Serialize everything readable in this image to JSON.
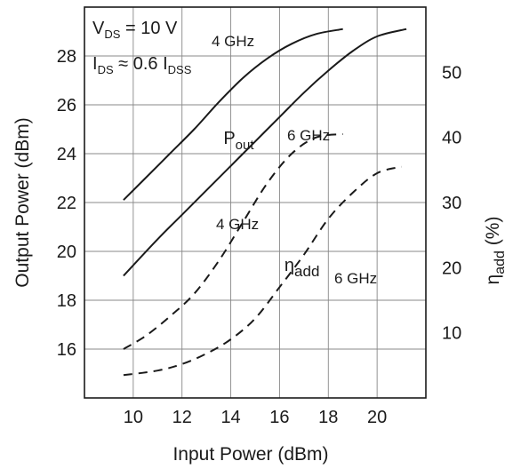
{
  "chart_data": {
    "type": "line",
    "xlabel": "Input Power (dBm)",
    "ylabel": "Output Power (dBm)",
    "ylabel_right": {
      "symbol": "η",
      "sub": "add",
      "suffix": "(%)"
    },
    "xlim": [
      8,
      22
    ],
    "ylim": [
      14,
      30
    ],
    "ylim_right": [
      0,
      60
    ],
    "x_ticks": [
      10,
      12,
      14,
      16,
      18,
      20
    ],
    "y_ticks": [
      16,
      18,
      20,
      22,
      24,
      26,
      28
    ],
    "y_right_ticks": [
      10,
      20,
      30,
      40,
      50
    ],
    "grid": true,
    "conditions": [
      {
        "pre": "V",
        "sub": "DS",
        "post": " = 10 V"
      },
      {
        "pre": "I",
        "sub": "DS",
        "post": " ≈ 0.6 I",
        "sub2": "DSS"
      }
    ],
    "series": [
      {
        "axis": "left",
        "style": "solid",
        "label": "4 GHz",
        "x": [
          9.6,
          10.5,
          11.5,
          12.5,
          13.5,
          14.5,
          15.5,
          16.5,
          17.5,
          18.6
        ],
        "y": [
          22.1,
          23.0,
          24.0,
          25.0,
          26.1,
          27.1,
          27.9,
          28.5,
          28.9,
          29.1
        ]
      },
      {
        "axis": "left",
        "style": "solid",
        "label": "6 GHz",
        "x": [
          9.6,
          11,
          12,
          13,
          14,
          15,
          16,
          17,
          18,
          19,
          20,
          21.2
        ],
        "y": [
          19.0,
          20.5,
          21.5,
          22.5,
          23.5,
          24.5,
          25.5,
          26.5,
          27.4,
          28.2,
          28.8,
          29.1
        ]
      },
      {
        "axis": "right",
        "style": "dashed",
        "label": "4 GHz",
        "x": [
          9.6,
          10.5,
          11.5,
          12.5,
          13.5,
          14.5,
          15.5,
          16.5,
          17.5,
          18.6
        ],
        "y": [
          7.5,
          9.5,
          12.5,
          16,
          21,
          27,
          33,
          37.5,
          40,
          40.5
        ]
      },
      {
        "axis": "right",
        "style": "dashed",
        "label": "6 GHz",
        "x": [
          9.6,
          11,
          12,
          13,
          14,
          15,
          16,
          17,
          18,
          19,
          20,
          21
        ],
        "y": [
          3.5,
          4.2,
          5.2,
          6.8,
          9,
          12.2,
          17,
          22,
          27.5,
          31.5,
          34.5,
          35.5
        ]
      }
    ],
    "curve_labels": [
      {
        "name": "Pout",
        "pre": "P",
        "sub": "out",
        "x": 13.7,
        "y": 24.4
      },
      {
        "name": "eta-add",
        "pre": "η",
        "sub": "add",
        "x": 16.2,
        "y": 19.2
      }
    ]
  }
}
